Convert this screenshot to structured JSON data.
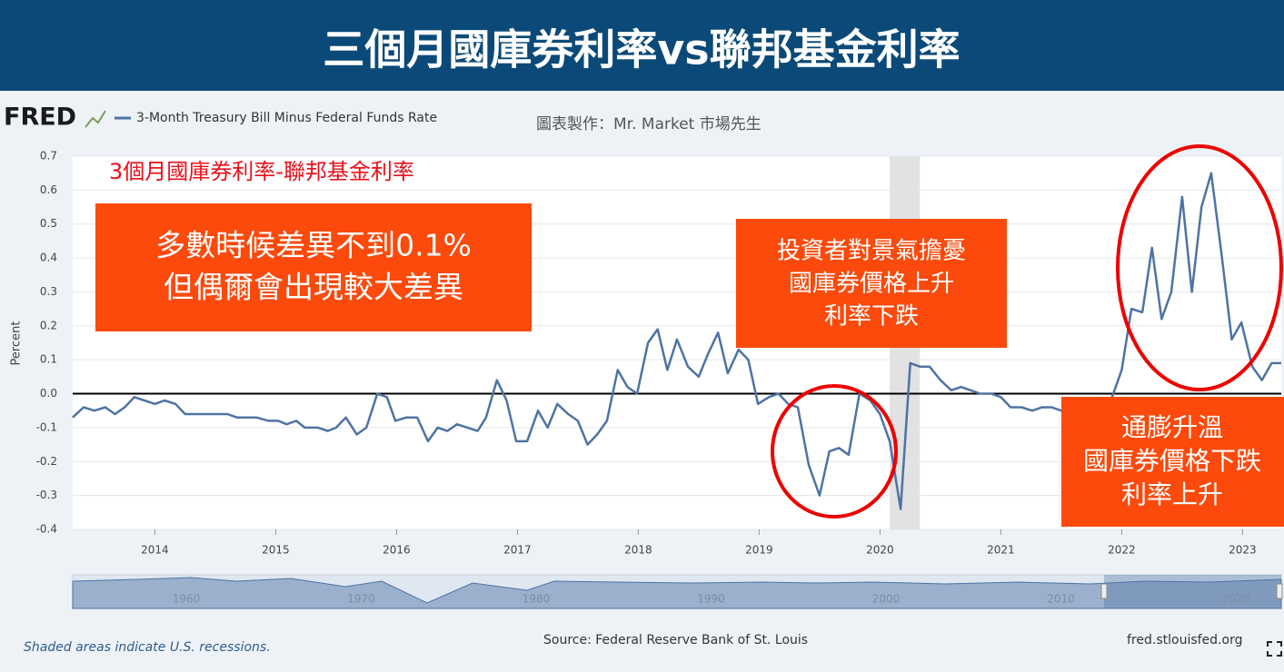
{
  "header": {
    "title": "三個月國庫券利率vs聯邦基金利率"
  },
  "chart_data": {
    "type": "line",
    "brand": "FRED",
    "credit": "圖表製作：Mr. Market 市場先生",
    "y_label": "Percent",
    "subtitle": "3個月國庫券利率-聯邦基金利率",
    "annotations": [
      {
        "lines": [
          "多數時候差異不到0.1%",
          "但偶爾會出現較大差異"
        ]
      },
      {
        "lines": [
          "投資者對景氣擔憂",
          "國庫券價格上升",
          "利率下跌"
        ]
      },
      {
        "lines": [
          "通膨升溫",
          "國庫券價格下跌",
          "利率上升"
        ]
      }
    ],
    "x": [
      2013.32,
      2013.41,
      2013.5,
      2013.59,
      2013.67,
      2013.75,
      2013.83,
      2014.0,
      2014.08,
      2014.17,
      2014.25,
      2014.6,
      2014.68,
      2014.84,
      2014.94,
      2015.02,
      2015.09,
      2015.17,
      2015.24,
      2015.35,
      2015.43,
      2015.5,
      2015.58,
      2015.67,
      2015.75,
      2015.84,
      2015.92,
      2015.99,
      2016.08,
      2016.17,
      2016.26,
      2016.34,
      2016.42,
      2016.5,
      2016.67,
      2016.74,
      2016.83,
      2016.91,
      2016.99,
      2017.08,
      2017.17,
      2017.25,
      2017.33,
      2017.42,
      2017.5,
      2017.58,
      2017.66,
      2017.74,
      2017.83,
      2017.91,
      2017.99,
      2018.08,
      2018.16,
      2018.24,
      2018.32,
      2018.41,
      2018.5,
      2018.58,
      2018.66,
      2018.74,
      2018.83,
      2018.91,
      2018.99,
      2019.08,
      2019.16,
      2019.24,
      2019.32,
      2019.41,
      2019.5,
      2019.58,
      2019.66,
      2019.74,
      2019.83,
      2019.92,
      2020.0,
      2020.08,
      2020.17,
      2020.25,
      2020.33,
      2020.41,
      2020.5,
      2020.59,
      2020.67,
      2020.75,
      2020.83,
      2020.92,
      2021.0,
      2021.08,
      2021.17,
      2021.26,
      2021.34,
      2021.42,
      2021.5,
      2021.67,
      2021.83,
      2021.92,
      2022.0,
      2022.08,
      2022.17,
      2022.25,
      2022.33,
      2022.41,
      2022.5,
      2022.58,
      2022.66,
      2022.74,
      2022.83,
      2022.91,
      2022.99,
      2023.08,
      2023.16,
      2023.24,
      2023.32
    ],
    "series": [
      {
        "name": "3-Month Treasury Bill Minus Federal Funds Rate",
        "color": "#4e73a4",
        "values": [
          -0.07,
          -0.04,
          -0.05,
          -0.04,
          -0.06,
          -0.04,
          -0.01,
          -0.03,
          -0.02,
          -0.03,
          -0.06,
          -0.06,
          -0.07,
          -0.07,
          -0.08,
          -0.08,
          -0.09,
          -0.08,
          -0.1,
          -0.1,
          -0.11,
          -0.1,
          -0.07,
          -0.12,
          -0.1,
          0.0,
          -0.01,
          -0.08,
          -0.07,
          -0.07,
          -0.14,
          -0.1,
          -0.11,
          -0.09,
          -0.11,
          -0.07,
          0.04,
          -0.02,
          -0.14,
          -0.14,
          -0.05,
          -0.1,
          -0.03,
          -0.06,
          -0.08,
          -0.15,
          -0.12,
          -0.08,
          0.07,
          0.02,
          0.0,
          0.15,
          0.19,
          0.07,
          0.16,
          0.08,
          0.05,
          0.12,
          0.18,
          0.06,
          0.13,
          0.1,
          -0.03,
          -0.01,
          0.0,
          -0.03,
          -0.04,
          -0.21,
          -0.3,
          -0.17,
          -0.16,
          -0.18,
          0.0,
          -0.02,
          -0.06,
          -0.14,
          -0.34,
          0.09,
          0.08,
          0.08,
          0.04,
          0.01,
          0.02,
          0.01,
          0.0,
          0.0,
          -0.01,
          -0.04,
          -0.04,
          -0.05,
          -0.04,
          -0.04,
          -0.05,
          -0.05,
          -0.05,
          -0.01,
          0.07,
          0.25,
          0.24,
          0.43,
          0.22,
          0.3,
          0.58,
          0.3,
          0.55,
          0.65,
          0.4,
          0.16,
          0.21,
          0.08,
          0.04,
          0.09,
          0.09
        ]
      }
    ],
    "recessions": [
      [
        2020.08,
        2020.33
      ]
    ],
    "xlim": [
      2013.32,
      2023.32
    ],
    "xticks": [
      2014,
      2015,
      2016,
      2017,
      2018,
      2019,
      2020,
      2021,
      2022,
      2023
    ],
    "ylim": [
      -0.4,
      0.7
    ],
    "yticks": [
      0.7,
      0.6,
      0.5,
      0.4,
      0.3,
      0.2,
      0.1,
      {
        "value": 0,
        "label": "0.0"
      },
      -0.1,
      -0.2,
      -0.3,
      -0.4
    ],
    "grid": true,
    "navigator_labels": [
      1960,
      1970,
      1980,
      1990,
      2000,
      2010,
      2020
    ],
    "footer": {
      "note": "Shaded areas indicate U.S. recessions.",
      "source": "Source: Federal Reserve Bank of St. Louis",
      "site": "fred.stlouisfed.org"
    }
  }
}
